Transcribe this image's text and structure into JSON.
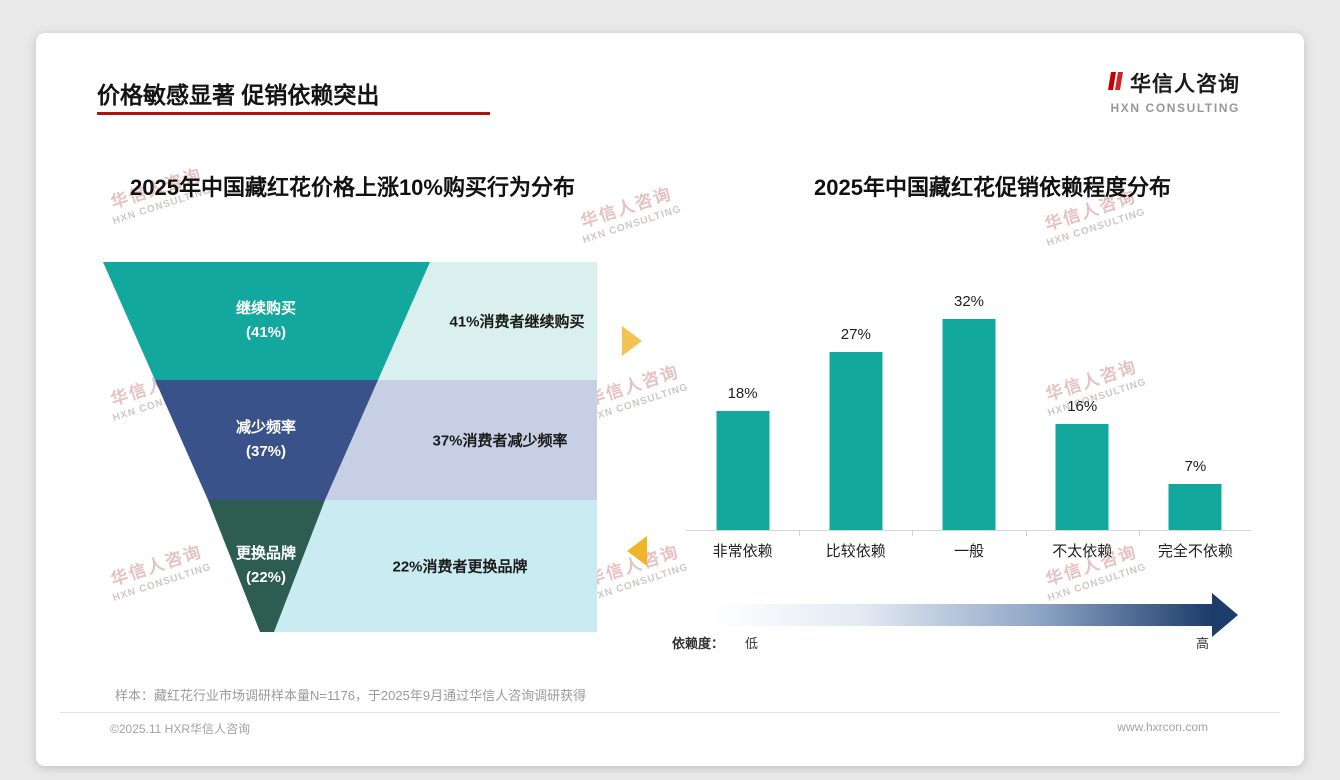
{
  "header": {
    "title": "价格敏感显著 促销依赖突出",
    "logo_name": "华信人咨询",
    "logo_sub": "HXN CONSULTING",
    "accent_red": "#b51010"
  },
  "chart_data": [
    {
      "type": "funnel",
      "title": "2025年中国藏红花价格上涨10%购买行为分布",
      "categories": [
        "继续购买",
        "减少频率",
        "更换品牌"
      ],
      "values": [
        41,
        37,
        22
      ],
      "value_labels": [
        "(41%)",
        "(37%)",
        "(22%)"
      ],
      "descriptions": [
        "41%消费者继续购买",
        "37%消费者减少频率",
        "22%消费者更换品牌"
      ],
      "colors": [
        "#13a89d",
        "#39538a",
        "#2d5c50"
      ],
      "bg_colors": [
        "#d9f0ee",
        "#c6cfe3",
        "#c9ecf2"
      ]
    },
    {
      "type": "bar",
      "title": "2025年中国藏红花促销依赖程度分布",
      "categories": [
        "非常依赖",
        "比较依赖",
        "一般",
        "不太依赖",
        "完全不依赖"
      ],
      "values": [
        18,
        27,
        32,
        16,
        7
      ],
      "value_labels": [
        "18%",
        "27%",
        "32%",
        "16%",
        "7%"
      ],
      "bar_color": "#13a89d",
      "ylim": [
        0,
        35
      ],
      "grid": "off",
      "legend": "none"
    }
  ],
  "dependency_scale": {
    "label": "依赖度：",
    "low": "低",
    "high": "高",
    "gradient_end_color": "#1c3c6a"
  },
  "footnote": "样本：藏红花行业市场调研样本量N=1176，于2025年9月通过华信人咨询调研获得",
  "footer": {
    "left": "©2025.11 HXR华信人咨询",
    "right": "www.hxrcon.com"
  },
  "watermark": {
    "line1": "华信人咨询",
    "line2": "HXN CONSULTING"
  }
}
